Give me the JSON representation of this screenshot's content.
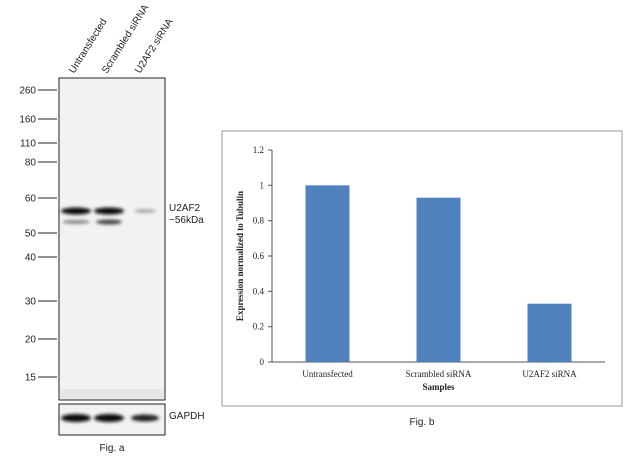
{
  "blot": {
    "lanes": [
      "Untransfected",
      "Scrambled siRNA",
      "U2AF2 siRNA"
    ],
    "markers": [
      260,
      160,
      110,
      80,
      60,
      50,
      40,
      30,
      20,
      15
    ],
    "band_label": "U2AF2",
    "band_size": "~56kDa",
    "loading_control": "GAPDH",
    "caption": "Fig. a"
  },
  "chart_data": {
    "type": "bar",
    "categories": [
      "Untransfected",
      "Scrambled siRNA",
      "U2AF2 siRNA"
    ],
    "values": [
      1,
      0.93,
      0.33
    ],
    "color": "#4f81bd",
    "ylim": [
      0,
      1.2
    ],
    "yticks": [
      0,
      0.2,
      0.4,
      0.6,
      0.8,
      1,
      1.2
    ],
    "y_label": "Expression normalized to Tubulin",
    "x_label": "Samples",
    "caption": "Fig. b"
  }
}
